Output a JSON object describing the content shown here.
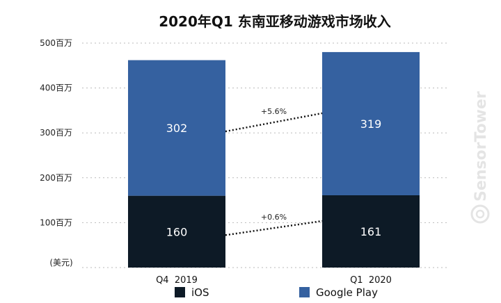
{
  "chart_data": {
    "type": "bar",
    "stacked": true,
    "title": "2020年Q1 东南亚移动游戏市场收入",
    "unit_label": "(美元)",
    "categories": [
      "Q4  2019",
      "Q1  2020"
    ],
    "series": [
      {
        "name": "iOS",
        "values": [
          160,
          161
        ],
        "color": "#0d1a26"
      },
      {
        "name": "Google Play",
        "values": [
          302,
          319
        ],
        "color": "#3561a0"
      }
    ],
    "growth_labels": [
      {
        "series": "iOS",
        "text": "+0.6%"
      },
      {
        "series": "Google Play",
        "text": "+5.6%"
      }
    ],
    "y_ticks": [
      "500百万",
      "400百万",
      "300百万",
      "200百万",
      "100百万"
    ],
    "y_tick_values": [
      500,
      400,
      300,
      200,
      100
    ],
    "ylim": [
      0,
      500
    ],
    "grid": true,
    "legend_position": "bottom",
    "watermark": "SensorTower"
  }
}
